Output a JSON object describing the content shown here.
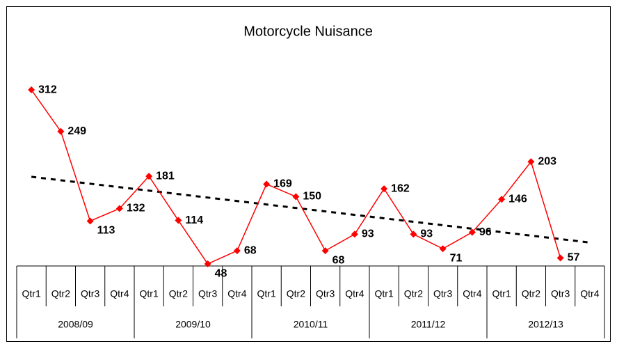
{
  "chart_data": {
    "type": "line",
    "title": "Motorcycle Nuisance",
    "categories": [
      "Qtr1",
      "Qtr2",
      "Qtr3",
      "Qtr4",
      "Qtr1",
      "Qtr2",
      "Qtr3",
      "Qtr4",
      "Qtr1",
      "Qtr2",
      "Qtr3",
      "Qtr4",
      "Qtr1",
      "Qtr2",
      "Qtr3",
      "Qtr4",
      "Qtr1",
      "Qtr2",
      "Qtr3",
      "Qtr4"
    ],
    "category_groups": [
      "2008/09",
      "2009/10",
      "2010/11",
      "2011/12",
      "2012/13"
    ],
    "series": [
      {
        "color": "#ff0000",
        "values": [
          312,
          249,
          113,
          132,
          181,
          114,
          48,
          68,
          169,
          150,
          68,
          93,
          162,
          93,
          71,
          96,
          146,
          203,
          57,
          null
        ]
      }
    ],
    "trendline": "linear",
    "data_labels": true
  }
}
